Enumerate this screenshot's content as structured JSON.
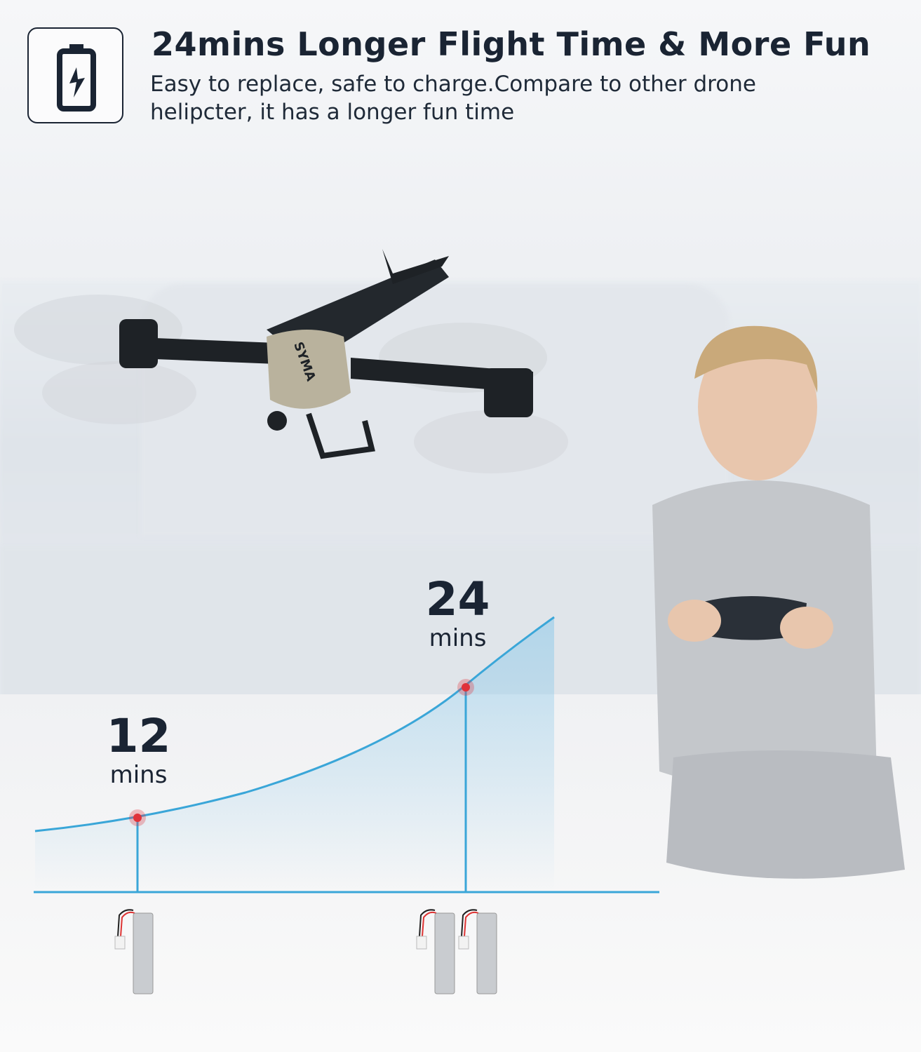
{
  "header": {
    "icon": "battery-charging-icon",
    "title": "24mins Longer Flight Time & More Fun",
    "subtitle": "Easy to replace, safe to charge.Compare to other drone helipcter, it has a longer fun time"
  },
  "product": {
    "brand": "SYMA"
  },
  "comparison": [
    {
      "value": "12",
      "unit": "mins",
      "batteries": 1
    },
    {
      "value": "24",
      "unit": "mins",
      "batteries": 2
    }
  ],
  "colors": {
    "text": "#1a2433",
    "curve": "#3aa6d8",
    "marker": "#e0323a"
  }
}
